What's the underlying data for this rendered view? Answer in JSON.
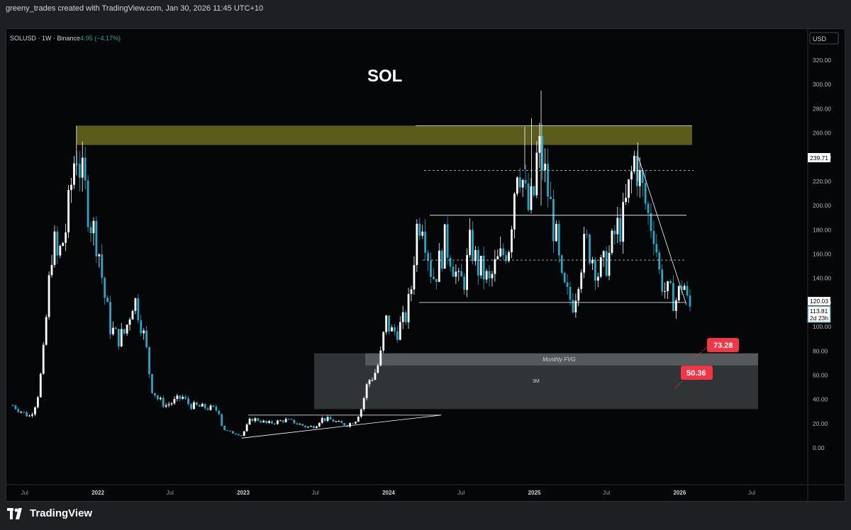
{
  "header": {
    "credit": "greeny_trades created with TradingView.com, Jan 30, 2026 11:45 UTC+10"
  },
  "legend": {
    "symbol": "SOLUSD · 1W · Binance",
    "change": "−4.95 (−4.17%)"
  },
  "price_axis": {
    "currency": "USD",
    "ticks": [
      "320.00",
      "300.00",
      "280.00",
      "260.00",
      "240.00",
      "220.00",
      "200.00",
      "180.00",
      "160.00",
      "140.00",
      "120.00",
      "100.00",
      "80.00",
      "60.00",
      "40.00",
      "20.00",
      "0.00"
    ],
    "tag_upper": "239.71",
    "tag_last": "120.03",
    "tag_current": "113.81",
    "tag_countdown": "2d 23h"
  },
  "time_axis": {
    "labels": [
      "Jul",
      "2022",
      "Jul",
      "2023",
      "Jul",
      "2024",
      "Jul",
      "2025",
      "Jul",
      "2026",
      "Jul"
    ]
  },
  "annotations": {
    "title": "SOL",
    "fvg_label": "Monthly FVG",
    "box_label": "3M",
    "callout_1": "73.28",
    "callout_2": "50.36"
  },
  "brand": {
    "name": "TradingView"
  },
  "colors": {
    "up": "#ffffff",
    "down": "#26a7c4",
    "supply_zone": "#6b6b1f",
    "fvg_box": "#3a3d40",
    "callout": "#f23645",
    "background": "#050607"
  },
  "chart_data": {
    "type": "candlestick",
    "symbol": "SOLUSD",
    "interval": "1W",
    "exchange": "Binance",
    "ylim": [
      0,
      320
    ],
    "x_range": [
      "2021-06",
      "2026-07"
    ],
    "close_series": [
      [
        "2021-06-01",
        35
      ],
      [
        "2021-06-15",
        32
      ],
      [
        "2021-07-01",
        28
      ],
      [
        "2021-07-15",
        26
      ],
      [
        "2021-08-01",
        40
      ],
      [
        "2021-08-15",
        70
      ],
      [
        "2021-09-01",
        140
      ],
      [
        "2021-09-10",
        175
      ],
      [
        "2021-09-20",
        155
      ],
      [
        "2021-10-01",
        165
      ],
      [
        "2021-10-15",
        185
      ],
      [
        "2021-11-01",
        235
      ],
      [
        "2021-11-08",
        248
      ],
      [
        "2021-11-20",
        225
      ],
      [
        "2021-12-01",
        210
      ],
      [
        "2021-12-15",
        185
      ],
      [
        "2022-01-01",
        170
      ],
      [
        "2022-01-15",
        130
      ],
      [
        "2022-02-01",
        100
      ],
      [
        "2022-02-20",
        90
      ],
      [
        "2022-03-10",
        95
      ],
      [
        "2022-04-01",
        125
      ],
      [
        "2022-04-15",
        110
      ],
      [
        "2022-05-01",
        85
      ],
      [
        "2022-05-15",
        50
      ],
      [
        "2022-06-01",
        40
      ],
      [
        "2022-06-20",
        35
      ],
      [
        "2022-07-10",
        38
      ],
      [
        "2022-08-01",
        42
      ],
      [
        "2022-08-20",
        35
      ],
      [
        "2022-09-10",
        34
      ],
      [
        "2022-10-01",
        33
      ],
      [
        "2022-10-20",
        32
      ],
      [
        "2022-11-01",
        30
      ],
      [
        "2022-11-10",
        16
      ],
      [
        "2022-11-25",
        13
      ],
      [
        "2022-12-15",
        12
      ],
      [
        "2022-12-28",
        10
      ],
      [
        "2023-01-10",
        18
      ],
      [
        "2023-01-20",
        24
      ],
      [
        "2023-02-10",
        23
      ],
      [
        "2023-03-01",
        20
      ],
      [
        "2023-03-20",
        21
      ],
      [
        "2023-04-15",
        23
      ],
      [
        "2023-05-10",
        21
      ],
      [
        "2023-06-10",
        17
      ],
      [
        "2023-07-01",
        18
      ],
      [
        "2023-07-15",
        24
      ],
      [
        "2023-08-10",
        23
      ],
      [
        "2023-09-01",
        20
      ],
      [
        "2023-09-20",
        19
      ],
      [
        "2023-10-10",
        23
      ],
      [
        "2023-10-25",
        33
      ],
      [
        "2023-11-10",
        55
      ],
      [
        "2023-11-25",
        60
      ],
      [
        "2023-12-10",
        72
      ],
      [
        "2023-12-25",
        105
      ],
      [
        "2024-01-10",
        95
      ],
      [
        "2024-01-25",
        98
      ],
      [
        "2024-02-10",
        105
      ],
      [
        "2024-02-25",
        125
      ],
      [
        "2024-03-10",
        180
      ],
      [
        "2024-03-25",
        195
      ],
      [
        "2024-04-05",
        170
      ],
      [
        "2024-04-20",
        140
      ],
      [
        "2024-05-05",
        150
      ],
      [
        "2024-05-20",
        170
      ],
      [
        "2024-06-05",
        160
      ],
      [
        "2024-06-25",
        135
      ],
      [
        "2024-07-10",
        140
      ],
      [
        "2024-07-25",
        170
      ],
      [
        "2024-08-10",
        150
      ],
      [
        "2024-08-25",
        145
      ],
      [
        "2024-09-10",
        135
      ],
      [
        "2024-09-25",
        150
      ],
      [
        "2024-10-15",
        160
      ],
      [
        "2024-10-30",
        170
      ],
      [
        "2024-11-10",
        210
      ],
      [
        "2024-11-20",
        240
      ],
      [
        "2024-12-01",
        225
      ],
      [
        "2024-12-15",
        195
      ],
      [
        "2024-12-30",
        205
      ],
      [
        "2025-01-10",
        250
      ],
      [
        "2025-01-25",
        230
      ],
      [
        "2025-02-10",
        200
      ],
      [
        "2025-02-25",
        170
      ],
      [
        "2025-03-10",
        135
      ],
      [
        "2025-03-25",
        125
      ],
      [
        "2025-04-10",
        120
      ],
      [
        "2025-04-25",
        150
      ],
      [
        "2025-05-10",
        170
      ],
      [
        "2025-05-25",
        160
      ],
      [
        "2025-06-10",
        145
      ],
      [
        "2025-06-25",
        150
      ],
      [
        "2025-07-10",
        160
      ],
      [
        "2025-07-25",
        180
      ],
      [
        "2025-08-10",
        185
      ],
      [
        "2025-08-25",
        210
      ],
      [
        "2025-09-10",
        240
      ],
      [
        "2025-09-20",
        225
      ],
      [
        "2025-10-01",
        210
      ],
      [
        "2025-10-15",
        190
      ],
      [
        "2025-10-30",
        180
      ],
      [
        "2025-11-10",
        145
      ],
      [
        "2025-11-25",
        130
      ],
      [
        "2025-12-10",
        125
      ],
      [
        "2025-12-25",
        122
      ],
      [
        "2026-01-10",
        140
      ],
      [
        "2026-01-20",
        120
      ],
      [
        "2026-01-30",
        113.81
      ]
    ],
    "levels": {
      "supply_zone": [
        250,
        266
      ],
      "range_high": 192,
      "range_mid_upper": 229,
      "range_mid_lower": 155,
      "range_low": 120,
      "monthly_fvg": [
        68,
        78
      ],
      "fvg_3m": [
        32,
        78
      ]
    }
  }
}
